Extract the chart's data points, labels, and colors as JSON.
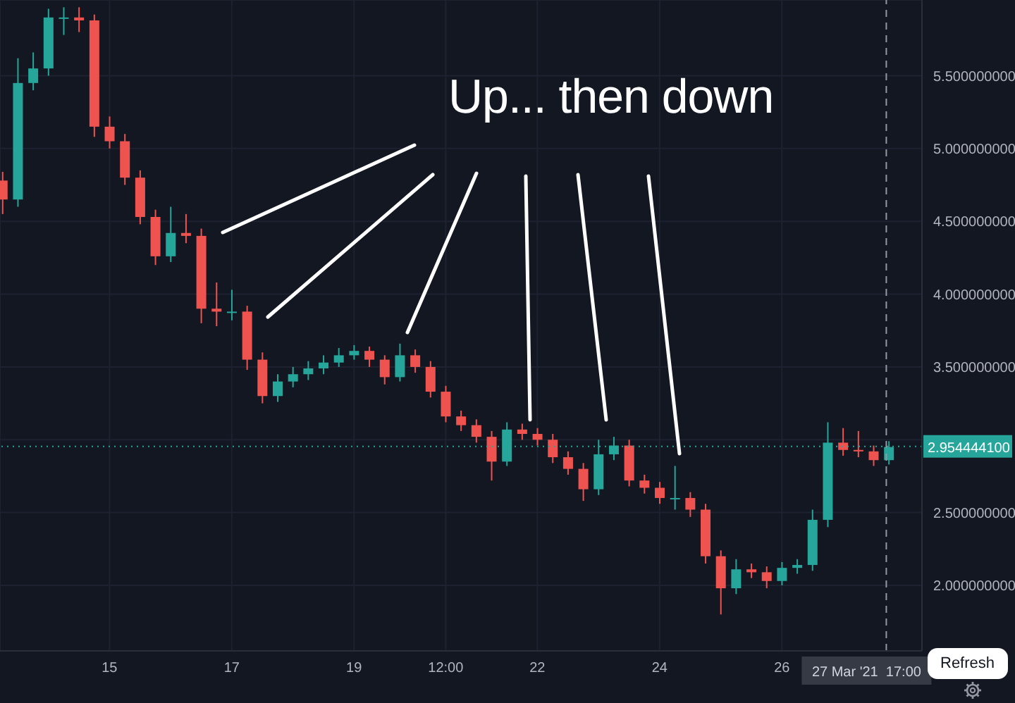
{
  "chart_data": {
    "type": "candlestick",
    "x": [
      "2021-03-13T06:00",
      "2021-03-13T12:00",
      "2021-03-13T18:00",
      "2021-03-14T00:00",
      "2021-03-14T06:00",
      "2021-03-14T12:00",
      "2021-03-14T18:00",
      "2021-03-15T00:00",
      "2021-03-15T06:00",
      "2021-03-15T12:00",
      "2021-03-15T18:00",
      "2021-03-16T00:00",
      "2021-03-16T06:00",
      "2021-03-16T12:00",
      "2021-03-16T18:00",
      "2021-03-17T00:00",
      "2021-03-17T06:00",
      "2021-03-17T12:00",
      "2021-03-17T18:00",
      "2021-03-18T00:00",
      "2021-03-18T06:00",
      "2021-03-18T12:00",
      "2021-03-18T18:00",
      "2021-03-19T00:00",
      "2021-03-19T06:00",
      "2021-03-19T12:00",
      "2021-03-19T18:00",
      "2021-03-20T00:00",
      "2021-03-20T06:00",
      "2021-03-20T12:00",
      "2021-03-20T18:00",
      "2021-03-21T00:00",
      "2021-03-21T06:00",
      "2021-03-21T12:00",
      "2021-03-21T18:00",
      "2021-03-22T00:00",
      "2021-03-22T06:00",
      "2021-03-22T12:00",
      "2021-03-22T18:00",
      "2021-03-23T00:00",
      "2021-03-23T06:00",
      "2021-03-23T12:00",
      "2021-03-23T18:00",
      "2021-03-24T00:00",
      "2021-03-24T06:00",
      "2021-03-24T12:00",
      "2021-03-24T18:00",
      "2021-03-25T00:00",
      "2021-03-25T06:00",
      "2021-03-25T12:00",
      "2021-03-25T18:00",
      "2021-03-26T00:00",
      "2021-03-26T06:00",
      "2021-03-26T12:00",
      "2021-03-26T18:00",
      "2021-03-27T00:00",
      "2021-03-27T06:00",
      "2021-03-27T12:00",
      "2021-03-27T18:00"
    ],
    "ohlc": [
      [
        4.78,
        4.84,
        4.55,
        4.65
      ],
      [
        4.65,
        5.62,
        4.6,
        5.45
      ],
      [
        5.45,
        5.66,
        5.4,
        5.55
      ],
      [
        5.55,
        5.96,
        5.5,
        5.9
      ],
      [
        5.9,
        5.97,
        5.78,
        5.9
      ],
      [
        5.9,
        5.97,
        5.8,
        5.88
      ],
      [
        5.88,
        5.92,
        5.08,
        5.15
      ],
      [
        5.15,
        5.22,
        5.0,
        5.05
      ],
      [
        5.05,
        5.1,
        4.75,
        4.8
      ],
      [
        4.8,
        4.85,
        4.48,
        4.53
      ],
      [
        4.53,
        4.58,
        4.2,
        4.26
      ],
      [
        4.26,
        4.6,
        4.22,
        4.42
      ],
      [
        4.42,
        4.55,
        4.35,
        4.4
      ],
      [
        4.4,
        4.45,
        3.8,
        3.9
      ],
      [
        3.9,
        4.08,
        3.78,
        3.88
      ],
      [
        3.88,
        4.03,
        3.82,
        3.88
      ],
      [
        3.88,
        3.92,
        3.48,
        3.55
      ],
      [
        3.55,
        3.6,
        3.25,
        3.3
      ],
      [
        3.3,
        3.45,
        3.26,
        3.4
      ],
      [
        3.4,
        3.5,
        3.36,
        3.45
      ],
      [
        3.45,
        3.54,
        3.41,
        3.49
      ],
      [
        3.49,
        3.58,
        3.45,
        3.53
      ],
      [
        3.53,
        3.63,
        3.5,
        3.58
      ],
      [
        3.58,
        3.65,
        3.55,
        3.61
      ],
      [
        3.61,
        3.64,
        3.5,
        3.55
      ],
      [
        3.55,
        3.58,
        3.38,
        3.43
      ],
      [
        3.43,
        3.66,
        3.4,
        3.58
      ],
      [
        3.58,
        3.62,
        3.46,
        3.5
      ],
      [
        3.5,
        3.54,
        3.29,
        3.33
      ],
      [
        3.33,
        3.37,
        3.12,
        3.16
      ],
      [
        3.16,
        3.2,
        3.06,
        3.1
      ],
      [
        3.1,
        3.14,
        2.98,
        3.02
      ],
      [
        3.02,
        3.06,
        2.72,
        2.85
      ],
      [
        2.85,
        3.12,
        2.82,
        3.07
      ],
      [
        3.07,
        3.11,
        3.0,
        3.04
      ],
      [
        3.04,
        3.08,
        2.96,
        3.0
      ],
      [
        3.0,
        3.04,
        2.84,
        2.88
      ],
      [
        2.88,
        2.92,
        2.76,
        2.8
      ],
      [
        2.8,
        2.84,
        2.58,
        2.66
      ],
      [
        2.66,
        3.0,
        2.62,
        2.9
      ],
      [
        2.9,
        3.02,
        2.86,
        2.96
      ],
      [
        2.96,
        3.0,
        2.68,
        2.72
      ],
      [
        2.72,
        2.76,
        2.63,
        2.67
      ],
      [
        2.67,
        2.71,
        2.56,
        2.6
      ],
      [
        2.6,
        2.82,
        2.52,
        2.6
      ],
      [
        2.6,
        2.64,
        2.47,
        2.52
      ],
      [
        2.52,
        2.56,
        2.15,
        2.2
      ],
      [
        2.2,
        2.24,
        1.8,
        1.98
      ],
      [
        1.98,
        2.18,
        1.94,
        2.11
      ],
      [
        2.11,
        2.15,
        2.05,
        2.09
      ],
      [
        2.09,
        2.13,
        1.98,
        2.03
      ],
      [
        2.03,
        2.16,
        2.0,
        2.12
      ],
      [
        2.12,
        2.18,
        2.08,
        2.14
      ],
      [
        2.14,
        2.52,
        2.1,
        2.45
      ],
      [
        2.45,
        3.12,
        2.4,
        2.98
      ],
      [
        2.98,
        3.08,
        2.89,
        2.93
      ],
      [
        2.93,
        3.06,
        2.88,
        2.92
      ],
      [
        2.92,
        2.96,
        2.82,
        2.86
      ],
      [
        2.86,
        2.99,
        2.83,
        2.95
      ]
    ],
    "xlim": [
      "2021-03-13T05:00",
      "2021-03-28T07:00"
    ],
    "xticks": [
      {
        "value": "2021-03-15",
        "label": "15"
      },
      {
        "value": "2021-03-17",
        "label": "17"
      },
      {
        "value": "2021-03-19",
        "label": "19"
      },
      {
        "value": "2021-03-20T12:00",
        "label": "12:00"
      },
      {
        "value": "2021-03-22",
        "label": "22"
      },
      {
        "value": "2021-03-24",
        "label": "24"
      },
      {
        "value": "2021-03-26",
        "label": "26"
      }
    ],
    "ylim": [
      1.55,
      6.02
    ],
    "yticks": [
      {
        "value": 2,
        "label": "2.000000000"
      },
      {
        "value": 2.5,
        "label": "2.500000000"
      },
      {
        "value": 3,
        "label": null
      },
      {
        "value": 3.5,
        "label": "3.500000000"
      },
      {
        "value": 4,
        "label": "4.000000000"
      },
      {
        "value": 4.5,
        "label": "4.500000000"
      },
      {
        "value": 5,
        "label": "5.000000000"
      },
      {
        "value": 5.5,
        "label": "5.500000000"
      }
    ],
    "grid": true,
    "ref_lines": [
      {
        "axis": "y",
        "value": 2.9544441,
        "label": "2.954444100",
        "color": "#26a69a",
        "line_style": "dotted"
      },
      {
        "axis": "x",
        "value": "2021-03-27T17:00",
        "label": "27 Mar '21  17:00",
        "color": "#9598a1",
        "line_style": "dashed"
      }
    ],
    "annotations": [
      "Up... then down",
      "Refresh"
    ]
  }
}
